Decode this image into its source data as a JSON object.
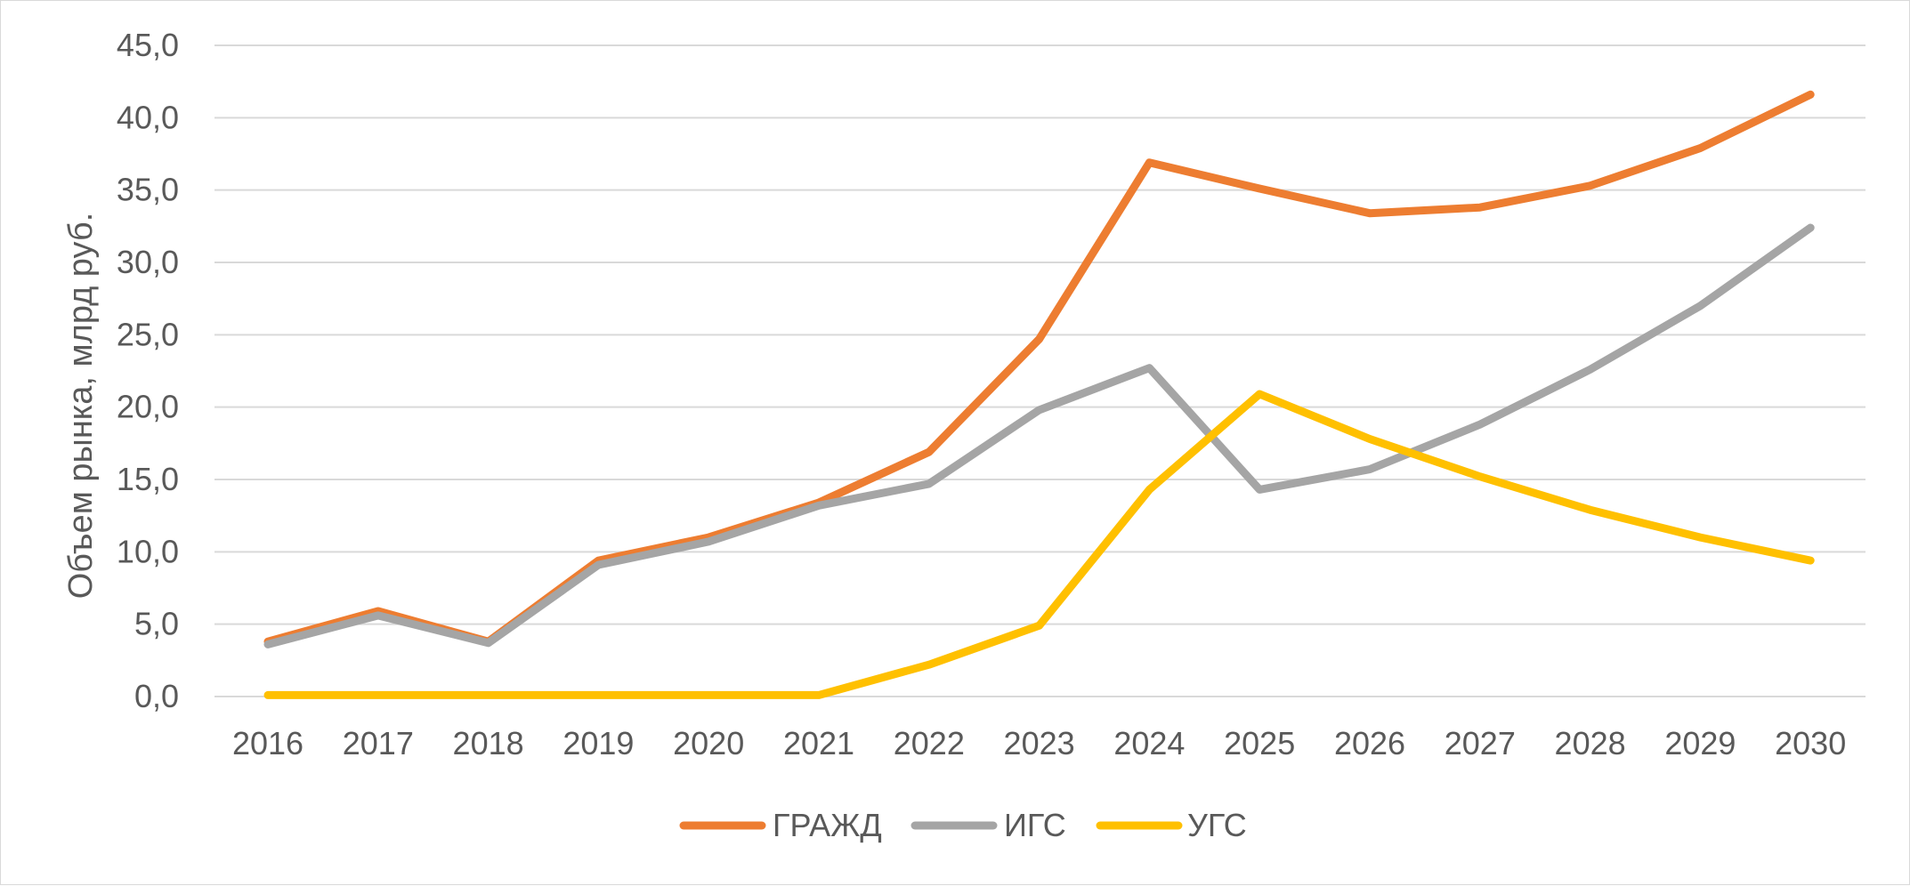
{
  "chart_data": {
    "type": "line",
    "title": "",
    "xlabel": "",
    "ylabel": "Объем рынка, млрд руб.",
    "ylim": [
      0,
      45
    ],
    "ytick_step": 5,
    "ytick_labels": [
      "0,0",
      "5,0",
      "10,0",
      "15,0",
      "20,0",
      "25,0",
      "30,0",
      "35,0",
      "40,0",
      "45,0"
    ],
    "grid": true,
    "legend_position": "bottom-center",
    "categories": [
      "2016",
      "2017",
      "2018",
      "2019",
      "2020",
      "2021",
      "2022",
      "2023",
      "2024",
      "2025",
      "2026",
      "2027",
      "2028",
      "2029",
      "2030"
    ],
    "series": [
      {
        "name": "ГРАЖД",
        "color": "#ED7D31",
        "values": [
          3.8,
          5.9,
          3.8,
          9.4,
          11.0,
          13.4,
          16.9,
          24.7,
          36.9,
          35.1,
          33.4,
          33.8,
          35.3,
          37.9,
          41.6
        ]
      },
      {
        "name": "ИГС",
        "color": "#A5A5A5",
        "values": [
          3.6,
          5.6,
          3.7,
          9.1,
          10.7,
          13.2,
          14.7,
          19.8,
          22.7,
          14.3,
          15.7,
          18.8,
          22.6,
          27.0,
          32.4
        ]
      },
      {
        "name": "УГС",
        "color": "#FFC000",
        "values": [
          0.1,
          0.1,
          0.1,
          0.1,
          0.1,
          0.1,
          2.2,
          4.9,
          14.3,
          20.9,
          17.8,
          15.2,
          12.9,
          11.0,
          9.4
        ]
      }
    ]
  }
}
